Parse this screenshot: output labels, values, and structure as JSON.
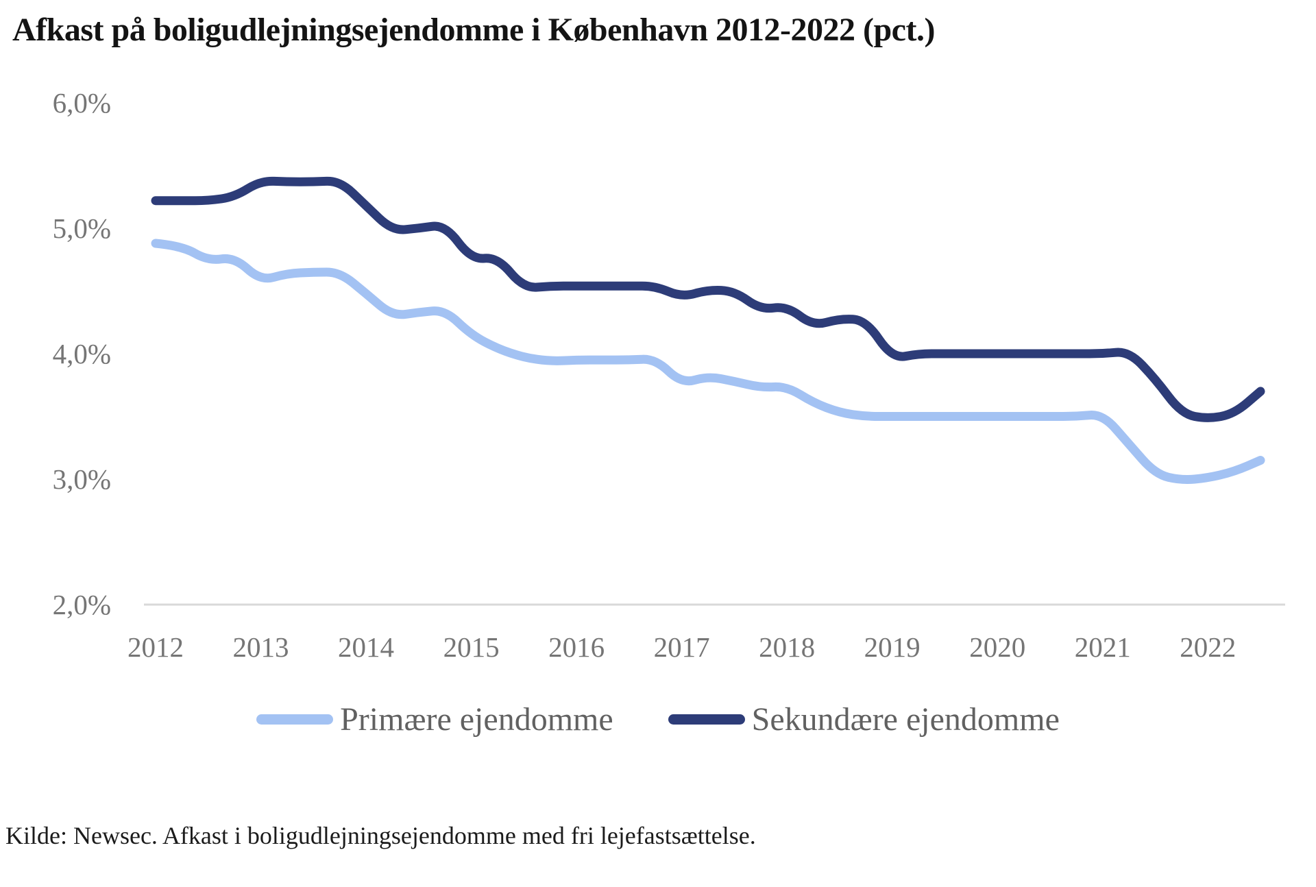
{
  "chart_data": {
    "type": "line",
    "title": "Afkast på boligudlejningsejendomme i København 2012-2022 (pct.)",
    "source": "Kilde: Newsec. Afkast i boligudlejningsejendomme med fri lejefastsættelse.",
    "grid": false,
    "legend_position": "bottom",
    "x_axis": {
      "tick_labels": [
        "2012",
        "2013",
        "2014",
        "2015",
        "2016",
        "2017",
        "2018",
        "2019",
        "2020",
        "2021",
        "2022"
      ],
      "points_per_year": 4,
      "start_period": "2012 Q1",
      "end_period": "2022 Q3"
    },
    "y_axis": {
      "tick_labels": [
        "6,0%",
        "5,0%",
        "4,0%",
        "3,0%",
        "2,0%"
      ],
      "tick_values": [
        6.0,
        5.0,
        4.0,
        3.0,
        2.0
      ],
      "ylim": [
        2.0,
        6.0
      ],
      "unit": "pct"
    },
    "baseline_color": "#D9D9D9",
    "axis_text_color": "#757575",
    "series": [
      {
        "name": "Primære ejendomme",
        "color": "#A3C2F3",
        "values": [
          4.88,
          4.86,
          4.74,
          4.77,
          4.58,
          4.64,
          4.65,
          4.65,
          4.48,
          4.3,
          4.33,
          4.35,
          4.15,
          4.04,
          3.97,
          3.94,
          3.95,
          3.95,
          3.95,
          3.96,
          3.76,
          3.82,
          3.78,
          3.73,
          3.74,
          3.61,
          3.53,
          3.5,
          3.5,
          3.5,
          3.5,
          3.5,
          3.5,
          3.5,
          3.5,
          3.5,
          3.52,
          3.28,
          3.04,
          2.99,
          3.01,
          3.06,
          3.15
        ]
      },
      {
        "name": "Sekundære ejendomme",
        "color": "#2D3C78",
        "values": [
          5.22,
          5.22,
          5.22,
          5.25,
          5.38,
          5.37,
          5.37,
          5.38,
          5.18,
          4.98,
          5.0,
          5.03,
          4.75,
          4.77,
          4.52,
          4.54,
          4.54,
          4.54,
          4.54,
          4.54,
          4.45,
          4.51,
          4.5,
          4.35,
          4.38,
          4.22,
          4.28,
          4.27,
          3.96,
          4.0,
          4.0,
          4.0,
          4.0,
          4.0,
          4.0,
          4.0,
          4.0,
          4.02,
          3.8,
          3.52,
          3.48,
          3.52,
          3.7
        ]
      }
    ]
  }
}
